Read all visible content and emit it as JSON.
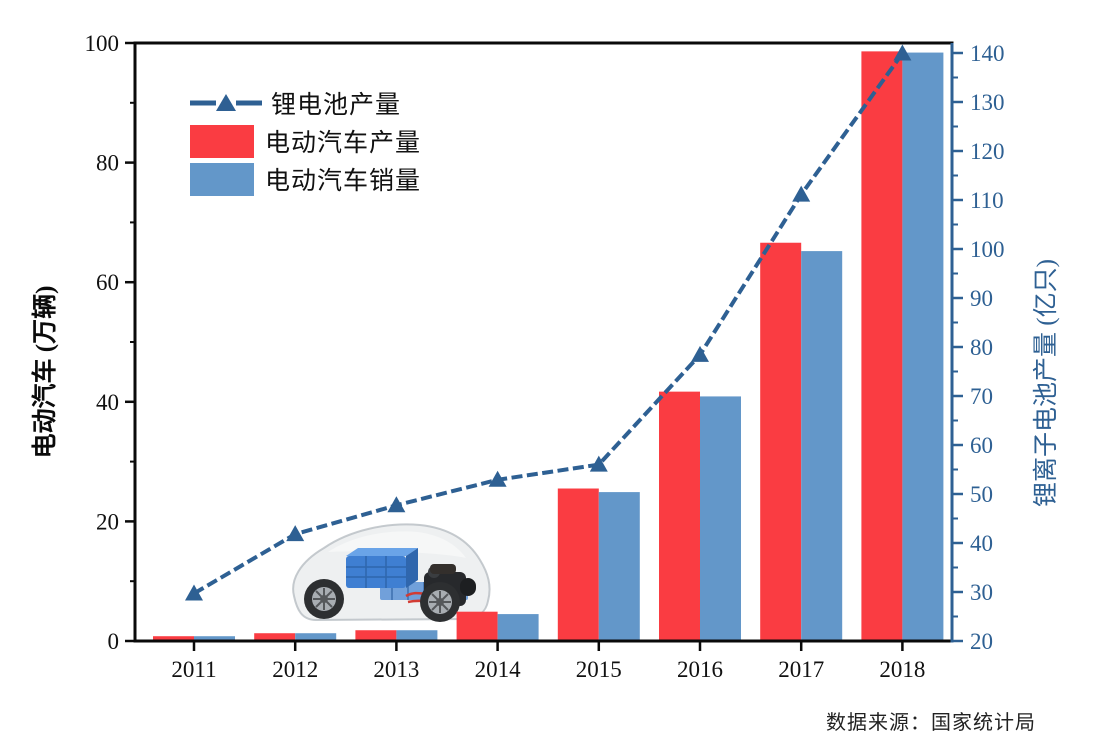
{
  "chart_data": {
    "type": "bar",
    "subtype": "grouped-bars-with-line-overlay",
    "categories": [
      "2011",
      "2012",
      "2013",
      "2014",
      "2015",
      "2016",
      "2017",
      "2018"
    ],
    "series": [
      {
        "name": "锂电池产量",
        "type": "line",
        "axis": "right",
        "marker": "triangle",
        "line_style": "dashed",
        "color": "#2e6093",
        "values": [
          29.7,
          41.8,
          47.7,
          52.9,
          56.0,
          78.4,
          111.1,
          139.9
        ]
      },
      {
        "name": "电动汽车产量",
        "type": "bar",
        "axis": "left",
        "color": "#fa3c42",
        "values": [
          0.8,
          1.3,
          1.8,
          4.9,
          25.5,
          41.7,
          66.6,
          98.6
        ]
      },
      {
        "name": "电动汽车销量",
        "type": "bar",
        "axis": "left",
        "color": "#6397c9",
        "values": [
          0.8,
          1.3,
          1.8,
          4.5,
          24.9,
          40.9,
          65.2,
          98.4
        ]
      }
    ],
    "left_axis": {
      "label": "电动汽车 (万辆)",
      "min": 0,
      "max": 100,
      "tick_step": 20,
      "minor_step": 10,
      "color": "#000000"
    },
    "right_axis": {
      "label": "锂离子电池产量 (亿只)",
      "min": 20,
      "max": 140,
      "tick_step": 10,
      "minor_step": 5,
      "color": "#2e6093"
    },
    "x_axis": {
      "color": "#000000"
    },
    "grid": false,
    "legend_position": "top-left"
  },
  "source_note": "数据来源：国家统计局",
  "decoration": {
    "car_illustration": "transparent electric-car chassis with blue battery pack and dark motor"
  }
}
